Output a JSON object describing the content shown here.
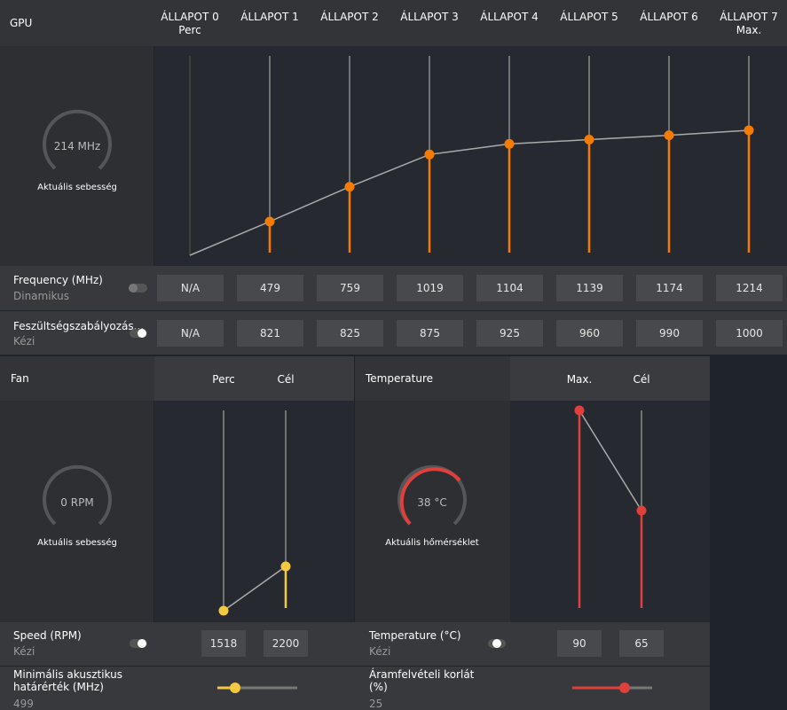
{
  "gpu": {
    "title": "GPU",
    "states": [
      {
        "name": "ÁLLAPOT 0",
        "sub": "Perc"
      },
      {
        "name": "ÁLLAPOT 1"
      },
      {
        "name": "ÁLLAPOT 2"
      },
      {
        "name": "ÁLLAPOT 3"
      },
      {
        "name": "ÁLLAPOT 4"
      },
      {
        "name": "ÁLLAPOT 5"
      },
      {
        "name": "ÁLLAPOT 6"
      },
      {
        "name": "ÁLLAPOT 7",
        "sub": "Max."
      }
    ],
    "gauge": {
      "value": "214 MHz",
      "label": "Aktuális sebesség"
    },
    "frequency": {
      "label": "Frequency (MHz)",
      "mode": "Dinamikus",
      "values": [
        "N/A",
        479,
        759,
        1019,
        1104,
        1139,
        1174,
        1214
      ]
    },
    "voltage": {
      "label": "Feszültségszabályozás...",
      "mode": "Kézi",
      "values": [
        "N/A",
        821,
        825,
        875,
        925,
        960,
        990,
        1000
      ]
    }
  },
  "fan": {
    "title": "Fan",
    "columns": [
      "Perc",
      "Cél"
    ],
    "gauge": {
      "value": "0 RPM",
      "label": "Aktuális sebesség"
    },
    "speed": {
      "label": "Speed (RPM)",
      "mode": "Kézi",
      "values": [
        1518,
        2200
      ]
    },
    "acoustic": {
      "label": "Minimális akusztikus határérték (MHz)",
      "value": "499"
    }
  },
  "temperature": {
    "title": "Temperature",
    "columns": [
      "Max.",
      "Cél"
    ],
    "gauge": {
      "value": "38 °C",
      "label": "Aktuális hőmérséklet"
    },
    "temp": {
      "label": "Temperature (°C)",
      "mode": "Kézi",
      "values": [
        90,
        65
      ]
    },
    "power": {
      "label": "Áramfelvételi korlát (%)",
      "value": "25"
    }
  }
}
